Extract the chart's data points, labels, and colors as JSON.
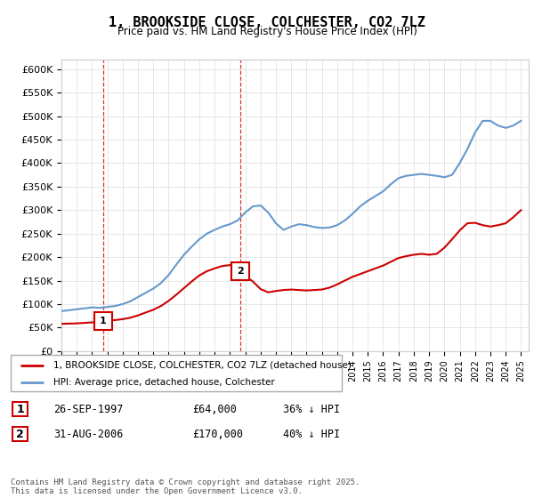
{
  "title": "1, BROOKSIDE CLOSE, COLCHESTER, CO2 7LZ",
  "subtitle": "Price paid vs. HM Land Registry's House Price Index (HPI)",
  "ylim": [
    0,
    620000
  ],
  "yticks": [
    0,
    50000,
    100000,
    150000,
    200000,
    250000,
    300000,
    350000,
    400000,
    450000,
    500000,
    550000,
    600000
  ],
  "ytick_labels": [
    "£0",
    "£50K",
    "£100K",
    "£150K",
    "£200K",
    "£250K",
    "£300K",
    "£350K",
    "£400K",
    "£450K",
    "£500K",
    "£550K",
    "£600K"
  ],
  "property_color": "#cc0000",
  "hpi_color": "#6699cc",
  "marker1_date": 1997.73,
  "marker1_price": 64000,
  "marker2_date": 2006.66,
  "marker2_price": 170000,
  "legend_property": "1, BROOKSIDE CLOSE, COLCHESTER, CO2 7LZ (detached house)",
  "legend_hpi": "HPI: Average price, detached house, Colchester",
  "table_row1": [
    "1",
    "26-SEP-1997",
    "£64,000",
    "36% ↓ HPI"
  ],
  "table_row2": [
    "2",
    "31-AUG-2006",
    "£170,000",
    "40% ↓ HPI"
  ],
  "footer": "Contains HM Land Registry data © Crown copyright and database right 2025.\nThis data is licensed under the Open Government Licence v3.0.",
  "hpi_x": [
    1995.0,
    1995.5,
    1996.0,
    1996.5,
    1997.0,
    1997.5,
    1998.0,
    1998.5,
    1999.0,
    1999.5,
    2000.0,
    2000.5,
    2001.0,
    2001.5,
    2002.0,
    2002.5,
    2003.0,
    2003.5,
    2004.0,
    2004.5,
    2005.0,
    2005.5,
    2006.0,
    2006.5,
    2007.0,
    2007.5,
    2008.0,
    2008.5,
    2009.0,
    2009.5,
    2010.0,
    2010.5,
    2011.0,
    2011.5,
    2012.0,
    2012.5,
    2013.0,
    2013.5,
    2014.0,
    2014.5,
    2015.0,
    2015.5,
    2016.0,
    2016.5,
    2017.0,
    2017.5,
    2018.0,
    2018.5,
    2019.0,
    2019.5,
    2020.0,
    2020.5,
    2021.0,
    2021.5,
    2022.0,
    2022.5,
    2023.0,
    2023.5,
    2024.0,
    2024.5,
    2025.0
  ],
  "hpi_y": [
    85000,
    87000,
    89000,
    91000,
    93000,
    92000,
    94000,
    96000,
    100000,
    106000,
    115000,
    124000,
    133000,
    145000,
    162000,
    184000,
    205000,
    222000,
    238000,
    250000,
    258000,
    265000,
    270000,
    278000,
    295000,
    308000,
    310000,
    295000,
    272000,
    258000,
    265000,
    270000,
    268000,
    264000,
    262000,
    263000,
    268000,
    278000,
    292000,
    308000,
    320000,
    330000,
    340000,
    355000,
    368000,
    373000,
    375000,
    377000,
    375000,
    373000,
    370000,
    375000,
    400000,
    430000,
    465000,
    490000,
    490000,
    480000,
    475000,
    480000,
    490000
  ],
  "property_full_x": [
    1995.0,
    1995.5,
    1996.0,
    1996.5,
    1997.0,
    1997.5,
    1997.73,
    1998.0,
    1998.5,
    1999.0,
    1999.5,
    2000.0,
    2000.5,
    2001.0,
    2001.5,
    2002.0,
    2002.5,
    2003.0,
    2003.5,
    2004.0,
    2004.5,
    2005.0,
    2005.5,
    2006.0,
    2006.5,
    2006.66,
    2007.0,
    2007.5,
    2008.0,
    2008.5,
    2009.0,
    2009.5,
    2010.0,
    2010.5,
    2011.0,
    2011.5,
    2012.0,
    2012.5,
    2013.0,
    2013.5,
    2014.0,
    2014.5,
    2015.0,
    2015.5,
    2016.0,
    2016.5,
    2017.0,
    2017.5,
    2018.0,
    2018.5,
    2019.0,
    2019.5,
    2020.0,
    2020.5,
    2021.0,
    2021.5,
    2022.0,
    2022.5,
    2023.0,
    2023.5,
    2024.0,
    2024.5,
    2025.0
  ],
  "property_full_y": [
    58000,
    58500,
    59000,
    60000,
    61000,
    62000,
    64000,
    65000,
    66000,
    68000,
    71000,
    76000,
    82000,
    88000,
    96000,
    107000,
    120000,
    134000,
    148000,
    161000,
    170000,
    176000,
    181000,
    183000,
    186000,
    170000,
    160000,
    148000,
    132000,
    125000,
    128000,
    130000,
    131000,
    130000,
    129000,
    130000,
    131000,
    135000,
    142000,
    150000,
    158000,
    164000,
    170000,
    176000,
    182000,
    190000,
    198000,
    202000,
    205000,
    207000,
    205000,
    207000,
    220000,
    238000,
    257000,
    272000,
    273000,
    268000,
    265000,
    268000,
    272000,
    285000,
    300000
  ]
}
